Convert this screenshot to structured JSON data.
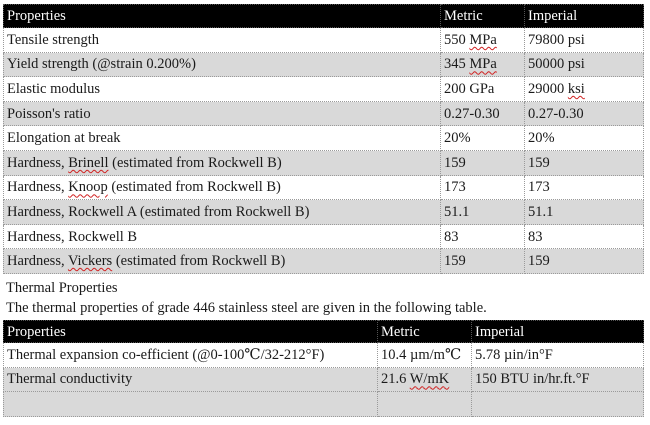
{
  "table1": {
    "headers": [
      "Properties",
      "Metric",
      "Imperial"
    ],
    "rows": [
      {
        "property": "Tensile strength",
        "metric": "550 MPa",
        "imperial": "79800 psi"
      },
      {
        "property": "Yield strength (@strain 0.200%)",
        "metric": "345 MPa",
        "imperial": "50000 psi"
      },
      {
        "property": "Elastic modulus",
        "metric": "200 GPa",
        "imperial": "29000 ksi"
      },
      {
        "property": "Poisson's ratio",
        "metric": "0.27-0.30",
        "imperial": "0.27-0.30"
      },
      {
        "property": "Elongation at break",
        "metric": "20%",
        "imperial": "20%"
      },
      {
        "property": "Hardness, Brinell (estimated from Rockwell B)",
        "metric": "159",
        "imperial": "159"
      },
      {
        "property": "Hardness, Knoop (estimated from Rockwell B)",
        "metric": "173",
        "imperial": "173"
      },
      {
        "property": "Hardness, Rockwell A (estimated from Rockwell B)",
        "metric": "51.1",
        "imperial": "51.1"
      },
      {
        "property": "Hardness, Rockwell B",
        "metric": "83",
        "imperial": "83"
      },
      {
        "property": "Hardness, Vickers (estimated from Rockwell B)",
        "metric": "159",
        "imperial": "159"
      }
    ]
  },
  "section": {
    "heading": "Thermal Properties",
    "intro": "The thermal properties of grade 446 stainless steel are given in the following table."
  },
  "table2": {
    "headers": [
      "Properties",
      "Metric",
      "Imperial"
    ],
    "rows": [
      {
        "property": "Thermal expansion co-efficient (@0-100℃/32-212°F)",
        "metric": "10.4 µm/m℃",
        "imperial": "5.78 µin/in°F"
      },
      {
        "property": "Thermal conductivity",
        "metric": "21.6 W/mK",
        "imperial": "150 BTU in/hr.ft.°F"
      },
      {
        "property": "",
        "metric": "",
        "imperial": ""
      }
    ]
  },
  "colors": {
    "header_background": "#000000",
    "header_text": "#ffffff",
    "shaded_row": "#d9d9d9",
    "spellcheck_underline": "#d02020"
  }
}
